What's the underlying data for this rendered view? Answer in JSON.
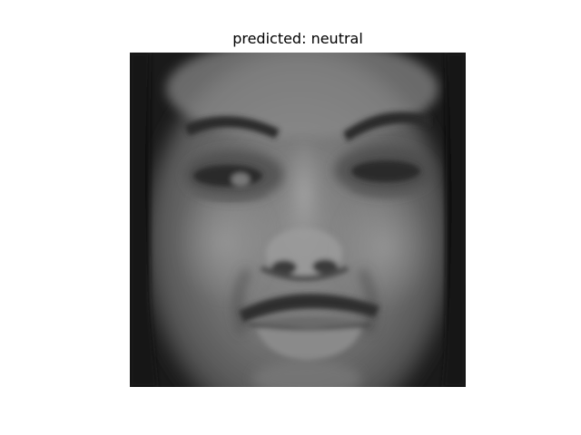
{
  "figure": {
    "title": "predicted: neutral"
  }
}
